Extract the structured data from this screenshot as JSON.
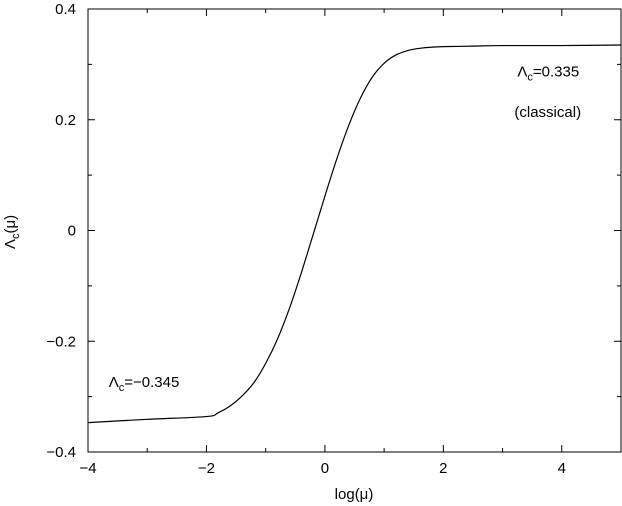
{
  "chart_data": {
    "type": "line",
    "xlabel": "log(μ)",
    "ylabel": "Λ",
    "ylabel_sub": "c",
    "ylabel_tail": "(μ)",
    "xlim": [
      -4,
      5
    ],
    "ylim": [
      -0.4,
      0.4
    ],
    "grid": false,
    "x_ticks": [
      -4,
      -2,
      0,
      2,
      4
    ],
    "x_tick_labels": [
      "−4",
      "−2",
      "0",
      "2",
      "4"
    ],
    "y_ticks": [
      -0.4,
      -0.2,
      0,
      0.2,
      0.4
    ],
    "y_tick_labels": [
      "−0.4",
      "−0.2",
      "0",
      "0.2",
      "0.4"
    ],
    "annotations": [
      {
        "id": "left",
        "symbol": "Λ",
        "sub": "c",
        "text": "=−0.345",
        "x": -3.65,
        "y": -0.283
      },
      {
        "id": "right",
        "symbol": "Λ",
        "sub": "c",
        "text": "=0.335",
        "x": 3.25,
        "y": 0.278
      },
      {
        "id": "right-note",
        "text": "(classical)",
        "x": 3.2,
        "y": 0.205
      }
    ],
    "series": [
      {
        "color": "#000000",
        "x": [
          -4,
          -3,
          -2,
          -1.8,
          -1.6,
          -1.4,
          -1.2,
          -1.0,
          -0.8,
          -0.6,
          -0.4,
          -0.2,
          0.0,
          0.2,
          0.4,
          0.6,
          0.8,
          1.0,
          1.2,
          1.4,
          1.6,
          1.8,
          2.0,
          2.5,
          3.0,
          4.0,
          5.0
        ],
        "y": [
          -0.347,
          -0.341,
          -0.336,
          -0.329,
          -0.317,
          -0.299,
          -0.275,
          -0.24,
          -0.196,
          -0.141,
          -0.077,
          -0.008,
          0.062,
          0.129,
          0.189,
          0.239,
          0.277,
          0.302,
          0.317,
          0.325,
          0.329,
          0.331,
          0.332,
          0.333,
          0.334,
          0.334,
          0.335
        ]
      }
    ]
  }
}
